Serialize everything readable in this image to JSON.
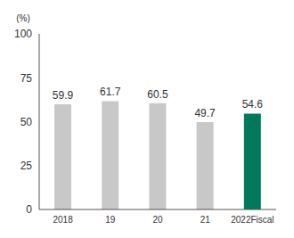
{
  "chart_data": {
    "type": "bar",
    "y_label": "(%)",
    "categories": [
      "2018",
      "19",
      "20",
      "21",
      "2022Fiscal"
    ],
    "values": [
      59.9,
      61.7,
      60.5,
      49.7,
      54.6
    ],
    "colors": [
      "#c8c8c8",
      "#c8c8c8",
      "#c8c8c8",
      "#c8c8c8",
      "#00795a"
    ],
    "ylim": [
      0,
      100
    ],
    "yticks": [
      0,
      25,
      50,
      75,
      100
    ],
    "grid": false,
    "data_labels": true
  }
}
